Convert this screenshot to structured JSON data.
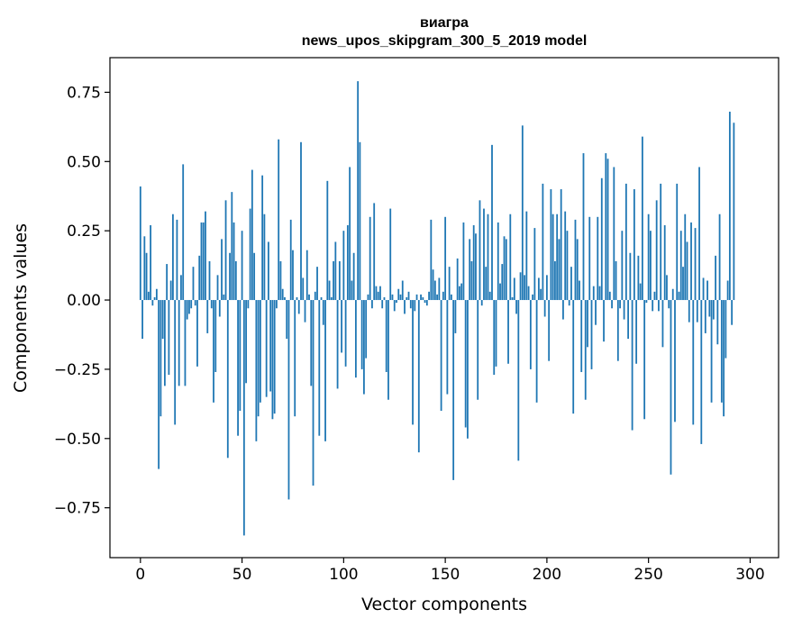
{
  "chart_data": {
    "type": "bar",
    "title": "виагра",
    "subtitle": "news_upos_skipgram_300_5_2019 model",
    "xlabel": "Vector components",
    "ylabel": "Components values",
    "xlim": [
      -15,
      314
    ],
    "ylim": [
      -0.93,
      0.875
    ],
    "xticks": [
      0,
      50,
      100,
      150,
      200,
      250,
      300
    ],
    "xtick_labels": [
      "0",
      "50",
      "100",
      "150",
      "200",
      "250",
      "300"
    ],
    "yticks": [
      -0.75,
      -0.5,
      -0.25,
      0.0,
      0.25,
      0.5,
      0.75
    ],
    "ytick_labels": [
      "−0.75",
      "−0.50",
      "−0.25",
      "0.00",
      "0.25",
      "0.50",
      "0.75"
    ],
    "grid": false,
    "bar_color": "#1f77b4",
    "x": "indices 0..299",
    "values": [
      0.41,
      -0.14,
      0.23,
      0.17,
      0.03,
      0.27,
      -0.02,
      0.01,
      0.04,
      -0.61,
      -0.42,
      -0.14,
      -0.31,
      0.13,
      -0.27,
      0.07,
      0.31,
      -0.45,
      0.29,
      -0.31,
      0.09,
      0.49,
      -0.31,
      -0.07,
      -0.05,
      -0.03,
      0.12,
      -0.02,
      -0.24,
      0.16,
      0.28,
      0.28,
      0.32,
      -0.12,
      0.14,
      -0.03,
      -0.37,
      -0.26,
      0.09,
      -0.06,
      0.22,
      0.02,
      0.36,
      -0.57,
      0.17,
      0.39,
      0.28,
      0.14,
      -0.49,
      -0.4,
      0.25,
      -0.85,
      -0.3,
      -0.03,
      0.33,
      0.47,
      0.17,
      -0.51,
      -0.42,
      -0.37,
      0.45,
      0.31,
      -0.35,
      0.21,
      -0.33,
      -0.43,
      -0.41,
      -0.03,
      0.58,
      0.14,
      0.04,
      0.01,
      -0.14,
      -0.72,
      0.29,
      0.18,
      -0.42,
      0.01,
      -0.05,
      0.57,
      0.08,
      -0.08,
      0.18,
      0.02,
      -0.31,
      -0.67,
      0.03,
      0.12,
      -0.49,
      0.01,
      -0.09,
      -0.51,
      0.43,
      0.07,
      0.01,
      0.14,
      0.21,
      -0.32,
      0.14,
      -0.19,
      0.25,
      -0.24,
      0.27,
      0.48,
      0.07,
      0.17,
      -0.28,
      0.79,
      0.57,
      -0.25,
      -0.34,
      -0.21,
      0.02,
      0.3,
      -0.03,
      0.35,
      0.05,
      0.03,
      0.05,
      -0.03,
      0.01,
      -0.26,
      -0.36,
      0.33,
      0.02,
      -0.04,
      -0.01,
      0.04,
      0.02,
      0.07,
      -0.05,
      0.01,
      0.03,
      -0.03,
      -0.45,
      -0.04,
      0.02,
      -0.55,
      0.02,
      0.01,
      -0.01,
      -0.02,
      0.03,
      0.29,
      0.11,
      0.07,
      0.02,
      0.08,
      -0.4,
      0.03,
      0.3,
      -0.34,
      0.12,
      0.02,
      -0.65,
      -0.12,
      0.15,
      0.05,
      0.06,
      0.28,
      -0.46,
      -0.5,
      0.22,
      0.14,
      0.27,
      0.24,
      -0.36,
      0.36,
      -0.02,
      0.33,
      0.12,
      0.31,
      0.03,
      0.56,
      -0.27,
      -0.24,
      0.28,
      0.06,
      0.13,
      0.23,
      0.22,
      -0.23,
      0.31,
      0.01,
      0.08,
      -0.05,
      -0.58,
      0.1,
      0.63,
      0.09,
      0.32,
      0.05,
      -0.25,
      0.02,
      0.26,
      -0.37,
      0.08,
      0.04,
      0.42,
      -0.06,
      0.09,
      -0.22,
      0.4,
      0.31,
      0.14,
      0.31,
      0.22,
      0.4,
      -0.07,
      0.32,
      0.25,
      -0.02,
      0.12,
      -0.41,
      0.29,
      0.22,
      0.07,
      -0.26,
      0.53,
      -0.36,
      -0.17,
      0.3,
      -0.25,
      0.05,
      -0.09,
      0.3,
      0.05,
      0.44,
      -0.15,
      0.53,
      0.51,
      0.03,
      -0.03,
      0.48,
      0.14,
      -0.22,
      -0.03,
      0.25,
      -0.07,
      0.42,
      -0.14,
      0.17,
      -0.47,
      0.4,
      -0.23,
      0.16,
      0.06,
      0.59,
      -0.43,
      -0.01,
      0.31,
      0.25,
      -0.04,
      0.03,
      0.36,
      -0.04,
      0.42,
      -0.17,
      0.27,
      0.09,
      -0.03,
      -0.63,
      0.04,
      -0.44,
      0.42,
      0.03,
      0.25,
      0.12,
      0.31,
      0.21,
      -0.08,
      0.28,
      -0.45,
      0.26,
      -0.08,
      0.48,
      -0.52,
      0.08,
      -0.12,
      0.07,
      -0.06,
      -0.37,
      -0.07,
      0.16,
      -0.16,
      0.31,
      -0.37,
      -0.42,
      -0.21,
      0.07,
      0.68,
      -0.09,
      0.64
    ]
  }
}
